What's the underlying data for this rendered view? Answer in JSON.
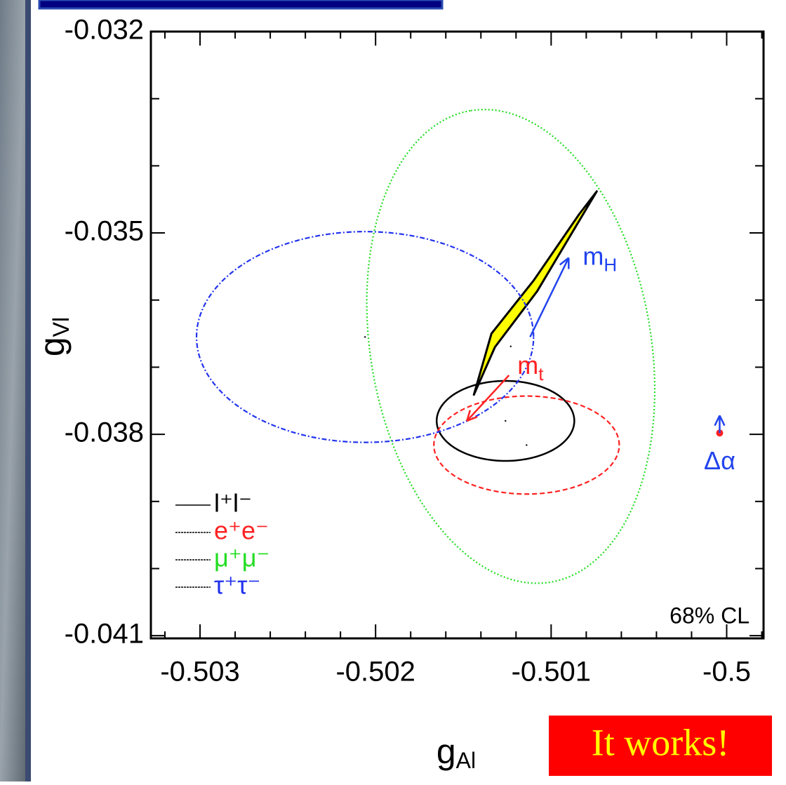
{
  "chart_data": {
    "type": "ellipse",
    "xlabel": "g",
    "xlabel_sub": "Al",
    "ylabel": "g",
    "ylabel_sub": "Vl",
    "xlim": [
      -0.50328,
      -0.49979
    ],
    "ylim": [
      -0.04104,
      -0.032
    ],
    "xticks": [
      -0.503,
      -0.502,
      -0.501,
      -0.5
    ],
    "yticks": [
      -0.032,
      -0.035,
      -0.038,
      -0.041
    ],
    "xminorticks": [
      -0.5032,
      -0.5028,
      -0.5026,
      -0.5024,
      -0.5022,
      -0.5018,
      -0.5016,
      -0.5014,
      -0.5012,
      -0.5008,
      -0.5006,
      -0.5004,
      -0.5002,
      -0.4998
    ],
    "yminorticks": [
      -0.033,
      -0.034,
      -0.036,
      -0.037,
      -0.039,
      -0.04
    ],
    "series": [
      {
        "name": "l⁺l⁻",
        "color": "#000000",
        "style": "solid",
        "center": [
          -0.50126,
          -0.0378
        ],
        "u": [
          0.000392,
          0
        ],
        "v": [
          0,
          0.000596
        ]
      },
      {
        "name": "e⁺e⁻",
        "color": "#ff2222",
        "style": "dashed",
        "center": [
          -0.50114,
          -0.03816
        ],
        "u": [
          0.000528,
          0
        ],
        "v": [
          0,
          0.00073
        ]
      },
      {
        "name": "μ⁺μ⁻",
        "color": "#22dd22",
        "style": "dotted",
        "center": [
          -0.50123,
          -0.03669
        ],
        "u": [
          -0.000228,
          0.003512
        ],
        "v": [
          0.000788,
          0.000345
        ]
      },
      {
        "name": "τ⁺τ⁻",
        "color": "#2233ee",
        "style": "dashdot",
        "center": [
          -0.50206,
          -0.03655
        ],
        "u": [
          0.00096,
          0
        ],
        "v": [
          0,
          0.00157
        ]
      }
    ],
    "band": {
      "color": "#ffff00",
      "x": [
        -0.50144,
        -0.50132,
        -0.50108,
        -0.50074,
        -0.50084,
        -0.5011,
        -0.50134
      ],
      "y": [
        -0.03741,
        -0.0367,
        -0.03587,
        -0.03438,
        -0.03472,
        -0.03571,
        -0.0365
      ]
    },
    "arrows": [
      {
        "label": "m",
        "sub": "H",
        "color": "#2244ee",
        "x": [
          -0.50112,
          -0.5009
        ],
        "y": [
          -0.03655,
          -0.03537
        ]
      },
      {
        "label": "m",
        "sub": "t",
        "color": "#ff2222",
        "x": [
          -0.50124,
          -0.50148
        ],
        "y": [
          -0.03712,
          -0.0378
        ]
      },
      {
        "label": "Δα",
        "color": "#2244ee",
        "x": [
          -0.50004,
          -0.50004
        ],
        "y": [
          -0.03798,
          -0.03772
        ]
      }
    ],
    "annotation": "68% CL",
    "slide_note": "It works!"
  }
}
